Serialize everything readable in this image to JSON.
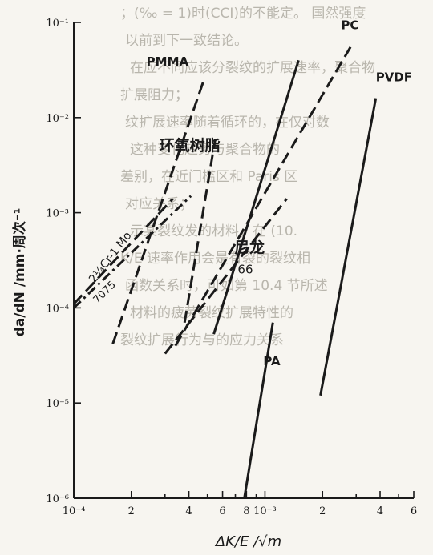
{
  "background_text": [
    "；(‰ = 1)时(CCI)的不能定。 国然强度",
    "以前到下一致结论。",
    "在应不同应该分裂纹的扩展速率，聚合物",
    "扩展阻力；",
    "纹扩展速率随着循环的，在仅对数",
    "这种变化趋势与聚合物的",
    "差别，在近门槛区和 Paris 区",
    "对应关系；",
    "示某裂纹发的材料，在 (10.",
    "K/E 速率作用会是有裂的裂纹相",
    "函数关系时，可如第 10.4 节所述",
    "材料的疲劳裂纹扩展特性的",
    "裂纹扩展行为与的应力关系"
  ],
  "chart_data": {
    "type": "line",
    "title": "",
    "xlabel": "ΔK/E /√m",
    "ylabel": "da/dN /mm·周次⁻¹",
    "x_scale": "log",
    "y_scale": "log",
    "xlim": [
      0.0001,
      0.006
    ],
    "ylim": [
      1e-06,
      0.1
    ],
    "x_ticks": [
      {
        "value": 0.0001,
        "label": "10⁻⁴"
      },
      {
        "value": 0.0002,
        "label": "2"
      },
      {
        "value": 0.0004,
        "label": "4"
      },
      {
        "value": 0.0006,
        "label": "6"
      },
      {
        "value": 0.0008,
        "label": "8"
      },
      {
        "value": 0.001,
        "label": "10⁻³"
      },
      {
        "value": 0.002,
        "label": "2"
      },
      {
        "value": 0.004,
        "label": "4"
      },
      {
        "value": 0.006,
        "label": "6"
      }
    ],
    "x_minor_ticks": [
      0.0003,
      0.0005,
      0.0007,
      0.0009,
      0.003,
      0.005
    ],
    "y_ticks": [
      {
        "value": 0.1,
        "label": "10⁻¹"
      },
      {
        "value": 0.01,
        "label": "10⁻²"
      },
      {
        "value": 0.001,
        "label": "10⁻³"
      },
      {
        "value": 0.0001,
        "label": "10⁻⁴"
      },
      {
        "value": 1e-05,
        "label": "10⁻⁵"
      },
      {
        "value": 1e-06,
        "label": "10⁻⁶"
      }
    ],
    "series": [
      {
        "name": "PMMA",
        "style": "dashed",
        "x": [
          0.00016,
          0.00048
        ],
        "y": [
          4.2e-05,
          0.025
        ]
      },
      {
        "name": "环氧树脂",
        "style": "dashed",
        "x": [
          0.00038,
          0.00055
        ],
        "y": [
          7e-05,
          0.006
        ]
      },
      {
        "name": "2¼Cr-1 Mo",
        "style": "dashed",
        "x": [
          0.0001,
          0.00033
        ],
        "y": [
          0.00011,
          0.0014
        ]
      },
      {
        "name": "7075",
        "style": "dashdot",
        "x": [
          0.0001,
          0.00041
        ],
        "y": [
          0.0001,
          0.0015
        ]
      },
      {
        "name": "尼龙 66",
        "style": "dashed",
        "x": [
          0.0003,
          0.0013
        ],
        "y": [
          3.3e-05,
          0.0014
        ]
      },
      {
        "name": "PC",
        "style": "dashed",
        "x": [
          0.00034,
          0.0028
        ],
        "y": [
          4e-05,
          0.055
        ]
      },
      {
        "name": "PA",
        "style": "solid",
        "x": [
          0.00078,
          0.0011
        ],
        "y": [
          1e-06,
          7e-05
        ]
      },
      {
        "name": "PVDF",
        "style": "solid",
        "x": [
          0.00195,
          0.0038
        ],
        "y": [
          1.2e-05,
          0.016
        ]
      },
      {
        "name": "",
        "style": "solid",
        "x": [
          0.00054,
          0.0015
        ],
        "y": [
          5.3e-05,
          0.04
        ]
      }
    ],
    "annotations": [
      {
        "text": "PMMA",
        "x": 0.00024,
        "y": 0.035
      },
      {
        "text": "环氧树脂",
        "x": 0.00028,
        "y": 0.0045
      },
      {
        "text": "2¼Cr-1 Mo",
        "x": 0.000128,
        "y": 0.00018
      },
      {
        "text": "7075",
        "x": 0.000133,
        "y": 0.00011
      },
      {
        "text": "尼龙",
        "x": 0.00069,
        "y": 0.00038
      },
      {
        "text": "66",
        "x": 0.00072,
        "y": 0.00023
      },
      {
        "text": "PC",
        "x": 0.0025,
        "y": 0.085
      },
      {
        "text": "PA",
        "x": 0.00098,
        "y": 2.5e-05
      },
      {
        "text": "PVDF",
        "x": 0.0038,
        "y": 0.024
      }
    ]
  }
}
